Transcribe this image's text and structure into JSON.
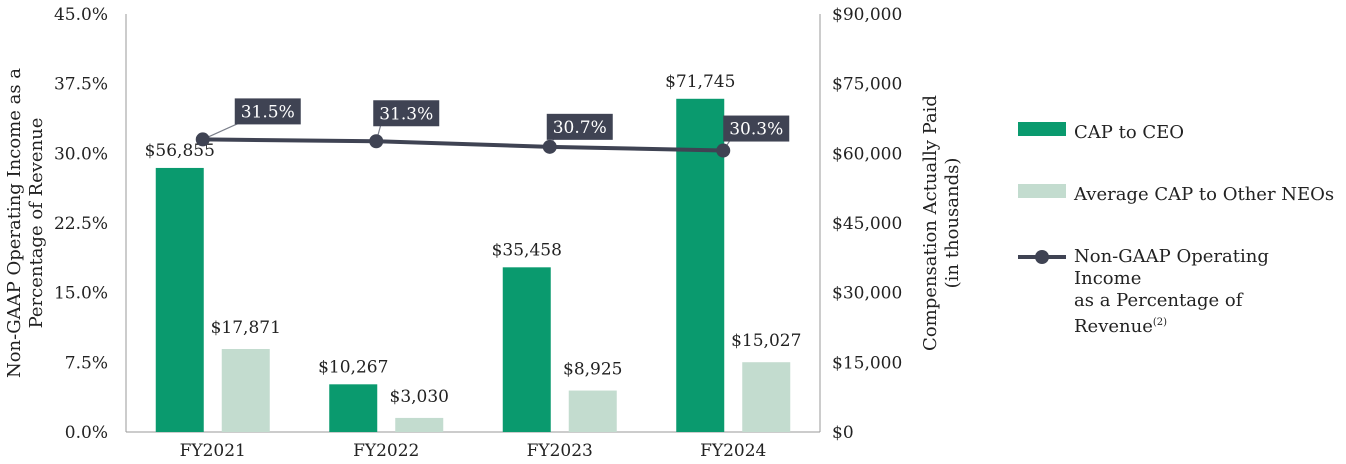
{
  "chart_data": {
    "type": "bar",
    "categories": [
      "FY2021",
      "FY2022",
      "FY2023",
      "FY2024"
    ],
    "series": [
      {
        "name": "CAP to CEO",
        "values": [
          56855,
          10267,
          35458,
          71745
        ],
        "labels": [
          "$56,855",
          "$10,267",
          "$35,458",
          "$71,745"
        ],
        "color": "#0a9a6e",
        "axis": "right"
      },
      {
        "name": "Average CAP to Other NEOs",
        "values": [
          17871,
          3030,
          8925,
          15027
        ],
        "labels": [
          "$17,871",
          "$3,030",
          "$8,925",
          "$15,027"
        ],
        "color": "#c3dccf",
        "axis": "right"
      },
      {
        "name": "Non-GAAP Operating Income as a Percentage of Revenue",
        "type": "line",
        "values": [
          31.5,
          31.3,
          30.7,
          30.3
        ],
        "labels": [
          "31.5%",
          "31.3%",
          "30.7%",
          "30.3%"
        ],
        "color": "#3f4353",
        "axis": "left"
      }
    ],
    "y_left": {
      "label_lines": [
        "Non-GAAP Operating Income as a",
        "Percentage of Revenue"
      ],
      "ylim": [
        0,
        45
      ],
      "ticks": [
        0,
        7.5,
        15,
        22.5,
        30,
        37.5,
        45
      ],
      "tick_labels": [
        "0.0%",
        "7.5%",
        "15.0%",
        "22.5%",
        "30.0%",
        "37.5%",
        "45.0%"
      ]
    },
    "y_right": {
      "label_lines": [
        "Compensation Actually Paid",
        "(in thousands)"
      ],
      "ylim": [
        0,
        90000
      ],
      "ticks": [
        0,
        15000,
        30000,
        45000,
        60000,
        75000,
        90000
      ],
      "tick_labels": [
        "$0",
        "$15,000",
        "$30,000",
        "$45,000",
        "$60,000",
        "$75,000",
        "$90,000"
      ]
    },
    "grid": false,
    "legend_position": "right"
  },
  "legend": {
    "items": [
      {
        "label": "CAP to CEO",
        "kind": "swatch",
        "color": "#0a9a6e"
      },
      {
        "label": "Average CAP to Other NEOs",
        "kind": "swatch",
        "color": "#c3dccf"
      },
      {
        "label": "Non-GAAP Operating Income",
        "label2": "as a Percentage of Revenue",
        "sup": "(2)",
        "kind": "line",
        "color": "#3f4353"
      }
    ]
  }
}
